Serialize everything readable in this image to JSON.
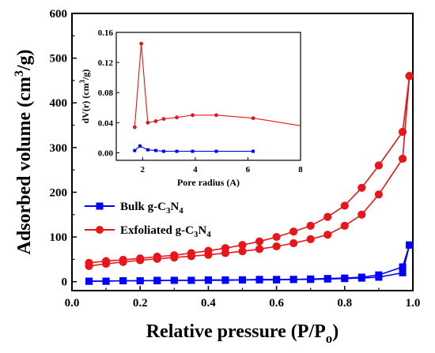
{
  "chart_data": [
    {
      "type": "line",
      "xlabel": "Relative pressure (P/P",
      "xlabel_sub": "o",
      "xlabel_end": ")",
      "ylabel": "Adsorbed volume (cm",
      "ylabel_sup": "3",
      "ylabel_end": "/g)",
      "xlim": [
        0.0,
        1.0
      ],
      "ylim": [
        -20,
        600
      ],
      "xticks": [
        "0.0",
        "0.2",
        "0.4",
        "0.6",
        "0.8",
        "1.0"
      ],
      "yticks": [
        "0",
        "100",
        "200",
        "300",
        "400",
        "500",
        "600"
      ],
      "legend_position": "center-left",
      "series": [
        {
          "name_parts": [
            "Bulk g-C",
            "3",
            "N",
            "4"
          ],
          "color": "#0000ff",
          "marker": "square",
          "adsorption": {
            "x": [
              0.05,
              0.1,
              0.15,
              0.2,
              0.25,
              0.3,
              0.35,
              0.4,
              0.45,
              0.5,
              0.55,
              0.6,
              0.65,
              0.7,
              0.75,
              0.8,
              0.85,
              0.9,
              0.97,
              0.99
            ],
            "y": [
              1,
              1,
              2,
              2,
              2,
              3,
              3,
              3,
              3,
              4,
              4,
              4,
              5,
              5,
              6,
              7,
              8,
              10,
              20,
              82
            ]
          },
          "desorption": {
            "x": [
              0.99,
              0.97,
              0.9,
              0.85,
              0.8,
              0.75,
              0.7,
              0.65,
              0.6,
              0.55,
              0.5,
              0.45,
              0.4,
              0.35,
              0.3,
              0.25,
              0.2,
              0.15,
              0.1,
              0.05
            ],
            "y": [
              82,
              33,
              15,
              10,
              8,
              7,
              6,
              5,
              5,
              5,
              4,
              4,
              4,
              3,
              3,
              3,
              2,
              2,
              1,
              1
            ]
          }
        },
        {
          "name_parts": [
            "Exfoliated g-C",
            "3",
            "N",
            "4"
          ],
          "color": "#e8161b",
          "marker": "circle",
          "adsorption": {
            "x": [
              0.05,
              0.1,
              0.15,
              0.2,
              0.25,
              0.3,
              0.35,
              0.4,
              0.45,
              0.5,
              0.55,
              0.6,
              0.65,
              0.7,
              0.75,
              0.8,
              0.85,
              0.9,
              0.97,
              0.99
            ],
            "y": [
              35,
              40,
              44,
              48,
              51,
              54,
              57,
              60,
              64,
              68,
              73,
              79,
              86,
              95,
              105,
              125,
              150,
              195,
              275,
              460
            ]
          },
          "desorption": {
            "x": [
              0.99,
              0.97,
              0.9,
              0.85,
              0.8,
              0.75,
              0.7,
              0.65,
              0.6,
              0.55,
              0.5,
              0.45,
              0.4,
              0.35,
              0.3,
              0.25,
              0.2,
              0.15,
              0.1,
              0.05
            ],
            "y": [
              460,
              335,
              260,
              210,
              170,
              145,
              125,
              112,
              100,
              90,
              82,
              75,
              69,
              64,
              59,
              56,
              52,
              49,
              46,
              42
            ]
          }
        }
      ]
    },
    {
      "type": "line",
      "xlabel": "Pore radius (A)",
      "ylabel": "dV(r) (cm",
      "ylabel_sup": "3",
      "ylabel_end": "/g)",
      "xlim": [
        1,
        8
      ],
      "ylim": [
        -0.01,
        0.16
      ],
      "xticks": [
        "2",
        "4",
        "6",
        "8"
      ],
      "yticks": [
        "0.00",
        "0.04",
        "0.08",
        "0.12",
        "0.16"
      ],
      "series": [
        {
          "color": "#e8161b",
          "marker": "circle",
          "x": [
            1.7,
            1.95,
            2.2,
            2.5,
            2.8,
            3.3,
            3.9,
            4.8,
            6.2,
            8.0
          ],
          "y": [
            0.034,
            0.145,
            0.04,
            0.042,
            0.045,
            0.047,
            0.05,
            0.05,
            0.046,
            0.036
          ],
          "marker_count": 9
        },
        {
          "color": "#0000ff",
          "marker": "square",
          "x": [
            1.7,
            1.9,
            2.2,
            2.5,
            2.8,
            3.3,
            3.9,
            4.8,
            6.2
          ],
          "y": [
            0.003,
            0.009,
            0.004,
            0.003,
            0.002,
            0.002,
            0.002,
            0.002,
            0.002
          ]
        }
      ]
    }
  ]
}
